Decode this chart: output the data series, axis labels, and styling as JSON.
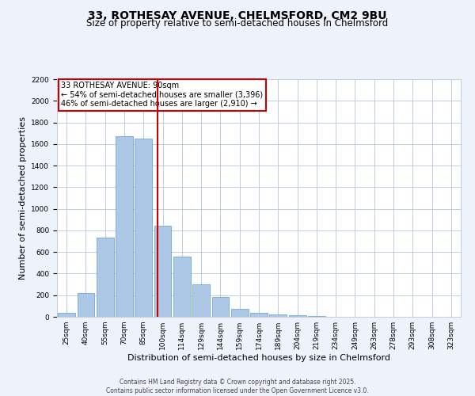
{
  "title_line1": "33, ROTHESAY AVENUE, CHELMSFORD, CM2 9BU",
  "title_line2": "Size of property relative to semi-detached houses in Chelmsford",
  "xlabel": "Distribution of semi-detached houses by size in Chelmsford",
  "ylabel": "Number of semi-detached properties",
  "bar_labels": [
    "25sqm",
    "40sqm",
    "55sqm",
    "70sqm",
    "85sqm",
    "100sqm",
    "114sqm",
    "129sqm",
    "144sqm",
    "159sqm",
    "174sqm",
    "189sqm",
    "204sqm",
    "219sqm",
    "234sqm",
    "249sqm",
    "263sqm",
    "278sqm",
    "293sqm",
    "308sqm",
    "323sqm"
  ],
  "bar_values": [
    40,
    220,
    730,
    1670,
    1650,
    840,
    560,
    300,
    180,
    70,
    35,
    20,
    15,
    5,
    0,
    0,
    0,
    0,
    0,
    0,
    0
  ],
  "bar_color": "#adc8e6",
  "bar_edge_color": "#5a9fd4",
  "vline_x": 4.72,
  "vline_color": "#cc0000",
  "annotation_title": "33 ROTHESAY AVENUE: 90sqm",
  "annotation_line1": "← 54% of semi-detached houses are smaller (3,396)",
  "annotation_line2": "46% of semi-detached houses are larger (2,910) →",
  "annotation_box_color": "#ffffff",
  "annotation_box_edge": "#cc0000",
  "ylim": [
    0,
    2200
  ],
  "yticks": [
    0,
    200,
    400,
    600,
    800,
    1000,
    1200,
    1400,
    1600,
    1800,
    2000,
    2200
  ],
  "background_color": "#eef2fb",
  "plot_bg_color": "#ffffff",
  "footer_line1": "Contains HM Land Registry data © Crown copyright and database right 2025.",
  "footer_line2": "Contains public sector information licensed under the Open Government Licence v3.0.",
  "grid_color": "#c0cce0",
  "title_fontsize": 10,
  "subtitle_fontsize": 8.5,
  "tick_fontsize": 6.5,
  "axis_label_fontsize": 8,
  "footer_fontsize": 5.5
}
